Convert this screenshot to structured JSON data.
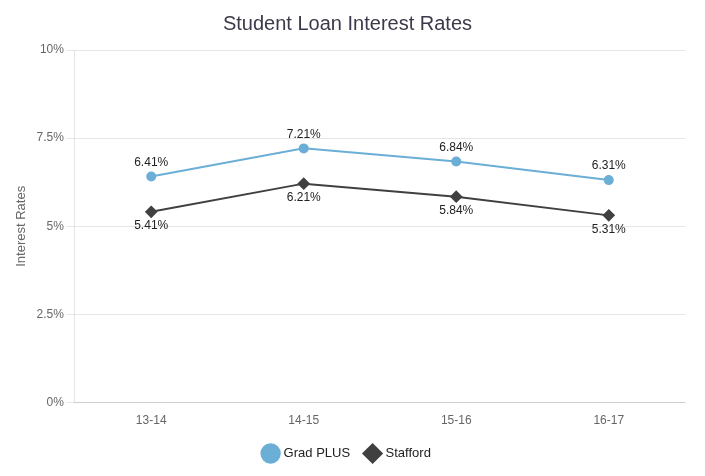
{
  "chart_data": {
    "type": "line",
    "title": "Student Loan Interest Rates",
    "ylabel": "Interest Rates",
    "categories": [
      "13-14",
      "14-15",
      "15-16",
      "16-17"
    ],
    "series": [
      {
        "name": "Grad PLUS",
        "color": "#6BAED6",
        "marker": "circle",
        "line_style": "solid",
        "values": [
          6.41,
          7.21,
          6.84,
          6.31
        ],
        "value_labels": [
          "6.41%",
          "7.21%",
          "6.84%",
          "6.31%"
        ]
      },
      {
        "name": "Stafford",
        "color": "#404040",
        "marker": "diamond",
        "line_style": "solid",
        "values": [
          5.41,
          6.21,
          5.84,
          5.31
        ],
        "value_labels": [
          "5.41%",
          "6.21%",
          "5.84%",
          "5.31%"
        ]
      }
    ],
    "ylim": [
      0,
      10
    ],
    "yticks": [
      {
        "value": 0,
        "label": "0%"
      },
      {
        "value": 2.5,
        "label": "2.5%"
      },
      {
        "value": 5,
        "label": "5%"
      },
      {
        "value": 7.5,
        "label": "7.5%"
      },
      {
        "value": 10,
        "label": "10%"
      }
    ],
    "grid": true,
    "legend": "bottom",
    "data_labels": true
  }
}
